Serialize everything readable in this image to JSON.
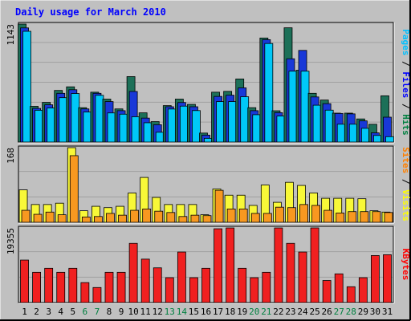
{
  "chart_data": [
    {
      "type": "bar",
      "title": "Daily usage for March 2010",
      "panel": "hits",
      "ymax_label": "1143",
      "ylim": [
        0,
        1143
      ],
      "right_label_parts": [
        {
          "text": "Pages",
          "color": "#00C0FF"
        },
        {
          "text": " / ",
          "color": "#000000"
        },
        {
          "text": "Files",
          "color": "#0000FF"
        },
        {
          "text": " / ",
          "color": "#000000"
        },
        {
          "text": "Hits",
          "color": "#008040"
        }
      ],
      "categories": [
        "1",
        "2",
        "3",
        "4",
        "5",
        "6",
        "7",
        "8",
        "9",
        "10",
        "11",
        "12",
        "13",
        "14",
        "15",
        "16",
        "17",
        "18",
        "19",
        "20",
        "21",
        "22",
        "23",
        "24",
        "25",
        "26",
        "27",
        "28",
        "29",
        "30",
        "31"
      ],
      "series": [
        {
          "name": "Hits",
          "color": "#1C7058",
          "values": [
            1143,
            346,
            384,
            500,
            535,
            333,
            483,
            416,
            321,
            634,
            283,
            198,
            353,
            416,
            365,
            87,
            483,
            491,
            611,
            333,
            1008,
            303,
            1107,
            696,
            472,
            407,
            280,
            280,
            224,
            172,
            448
          ]
        },
        {
          "name": "Files",
          "color": "#1838D8",
          "values": [
            1106,
            326,
            361,
            472,
            507,
            321,
            472,
            392,
            304,
            490,
            232,
            168,
            342,
            383,
            342,
            67,
            442,
            454,
            525,
            304,
            992,
            285,
            807,
            888,
            437,
            372,
            277,
            273,
            205,
            89,
            241
          ]
        },
        {
          "name": "Pages",
          "color": "#00C8F8",
          "values": [
            1073,
            308,
            330,
            430,
            470,
            291,
            453,
            282,
            270,
            245,
            187,
            95,
            320,
            348,
            305,
            36,
            392,
            392,
            439,
            265,
            955,
            252,
            687,
            687,
            357,
            309,
            173,
            173,
            133,
            64,
            52
          ]
        }
      ]
    },
    {
      "type": "bar",
      "panel": "visits",
      "ymax_label": "168",
      "ylim": [
        0,
        168
      ],
      "right_label_parts": [
        {
          "text": "Sites",
          "color": "#FF8000"
        },
        {
          "text": " / ",
          "color": "#000000"
        },
        {
          "text": "Visits",
          "color": "#FFFF00"
        }
      ],
      "categories": [
        "1",
        "2",
        "3",
        "4",
        "5",
        "6",
        "7",
        "8",
        "9",
        "10",
        "11",
        "12",
        "13",
        "14",
        "15",
        "16",
        "17",
        "18",
        "19",
        "20",
        "21",
        "22",
        "23",
        "24",
        "25",
        "26",
        "27",
        "28",
        "29",
        "30",
        "31"
      ],
      "series": [
        {
          "name": "Visits",
          "color": "#F8F838",
          "values": [
            73,
            40,
            40,
            43,
            168,
            26,
            36,
            33,
            36,
            66,
            101,
            56,
            40,
            40,
            40,
            17,
            75,
            61,
            61,
            38,
            84,
            45,
            90,
            83,
            66,
            54,
            54,
            54,
            53,
            26,
            23
          ]
        },
        {
          "name": "Sites",
          "color": "#F89820",
          "values": [
            27,
            18,
            23,
            17,
            150,
            12,
            13,
            20,
            16,
            27,
            30,
            25,
            22,
            13,
            16,
            15,
            72,
            30,
            30,
            20,
            20,
            34,
            33,
            40,
            38,
            27,
            21,
            24,
            24,
            24,
            22
          ]
        }
      ]
    },
    {
      "type": "bar",
      "panel": "kbytes",
      "ymax_label": "19355",
      "ylim": [
        0,
        19355
      ],
      "right_label_parts": [
        {
          "text": "KBytes",
          "color": "#FF0000"
        }
      ],
      "categories": [
        "1",
        "2",
        "3",
        "4",
        "5",
        "6",
        "7",
        "8",
        "9",
        "10",
        "11",
        "12",
        "13",
        "14",
        "15",
        "16",
        "17",
        "18",
        "19",
        "20",
        "21",
        "22",
        "23",
        "24",
        "25",
        "26",
        "27",
        "28",
        "29",
        "30",
        "31"
      ],
      "series": [
        {
          "name": "KBytes",
          "color": "#F02020",
          "values": [
            11019,
            7840,
            8882,
            7840,
            8882,
            5174,
            3896,
            7840,
            7840,
            15350,
            11260,
            9002,
            6451,
            13103,
            6451,
            8882,
            19134,
            19347,
            8882,
            6451,
            7840,
            19347,
            15350,
            13103,
            19355,
            5714,
            7446,
            4103,
            6451,
            12193,
            12401
          ]
        }
      ]
    }
  ],
  "x_labels": [
    "1",
    "2",
    "3",
    "4",
    "5",
    "6",
    "7",
    "8",
    "9",
    "10",
    "11",
    "12",
    "13",
    "14",
    "15",
    "16",
    "17",
    "18",
    "19",
    "20",
    "21",
    "22",
    "23",
    "24",
    "25",
    "26",
    "27",
    "28",
    "29",
    "30",
    "31"
  ],
  "weekend_days": [
    "6",
    "7",
    "13",
    "14",
    "20",
    "21",
    "27",
    "28"
  ],
  "colors": {
    "page_bg": "#C0C0C0",
    "plot_bg": "#C0C0C0",
    "grid": "#A0A0A0",
    "title": "#0000FF",
    "weekday_label": "#000000",
    "weekend_label": "#008040"
  }
}
